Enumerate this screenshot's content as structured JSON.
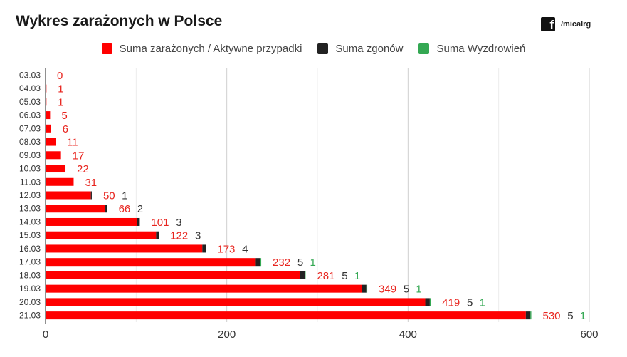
{
  "title": "Wykres zarażonych w Polsce",
  "brand": {
    "icon": "facebook-icon",
    "handle": "/micalrg"
  },
  "legend": [
    {
      "label": "Suma zarażonych / Aktywne przypadki",
      "color": "#ff0000"
    },
    {
      "label": "Suma zgonów",
      "color": "#222222"
    },
    {
      "label": "Suma Wyzdrowień",
      "color": "#34a853"
    }
  ],
  "chart_data": {
    "type": "bar",
    "orientation": "horizontal",
    "stacked": true,
    "categories": [
      "03.03",
      "04.03",
      "05.03",
      "06.03",
      "07.03",
      "08.03",
      "09.03",
      "10.03",
      "11.03",
      "12.03",
      "13.03",
      "14.03",
      "15.03",
      "16.03",
      "17.03",
      "18.03",
      "19.03",
      "20.03",
      "21.03"
    ],
    "series": [
      {
        "name": "Suma zarażonych / Aktywne przypadki",
        "color": "#ff0000",
        "label_color": "#e8251f",
        "values": [
          0,
          1,
          1,
          5,
          6,
          11,
          17,
          22,
          31,
          50,
          66,
          101,
          122,
          173,
          232,
          281,
          349,
          419,
          530
        ]
      },
      {
        "name": "Suma zgonów",
        "color": "#222222",
        "label_color": "#333333",
        "values": [
          0,
          0,
          0,
          0,
          0,
          0,
          0,
          0,
          0,
          1,
          2,
          3,
          3,
          4,
          5,
          5,
          5,
          5,
          5
        ]
      },
      {
        "name": "Suma Wyzdrowień",
        "color": "#34a853",
        "label_color": "#34a853",
        "values": [
          0,
          0,
          0,
          0,
          0,
          0,
          0,
          0,
          0,
          0,
          0,
          0,
          0,
          0,
          1,
          1,
          1,
          1,
          1
        ]
      }
    ],
    "xlim": [
      0,
      600
    ],
    "xticks": [
      "0",
      "200",
      "400",
      "600"
    ],
    "grid": true
  }
}
